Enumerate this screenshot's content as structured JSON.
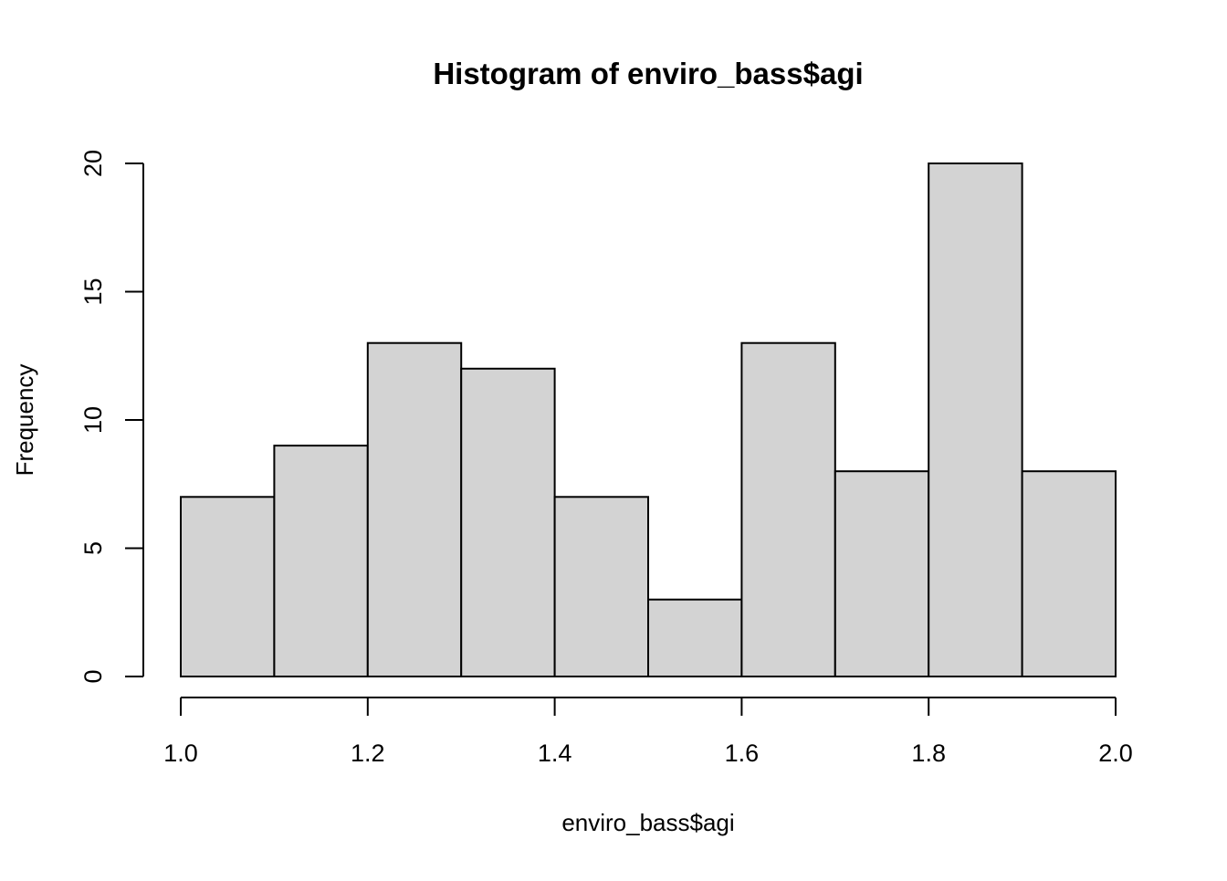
{
  "chart_data": {
    "type": "bar",
    "title": "Histogram of enviro_bass$agi",
    "xlabel": "enviro_bass$agi",
    "ylabel": "Frequency",
    "bins": [
      {
        "start": 1.0,
        "end": 1.1,
        "count": 7
      },
      {
        "start": 1.1,
        "end": 1.2,
        "count": 9
      },
      {
        "start": 1.2,
        "end": 1.3,
        "count": 13
      },
      {
        "start": 1.3,
        "end": 1.4,
        "count": 12
      },
      {
        "start": 1.4,
        "end": 1.5,
        "count": 7
      },
      {
        "start": 1.5,
        "end": 1.6,
        "count": 3
      },
      {
        "start": 1.6,
        "end": 1.7,
        "count": 13
      },
      {
        "start": 1.7,
        "end": 1.8,
        "count": 8
      },
      {
        "start": 1.8,
        "end": 1.9,
        "count": 20
      },
      {
        "start": 1.9,
        "end": 2.0,
        "count": 8
      }
    ],
    "xlim": [
      1.0,
      2.0
    ],
    "ylim": [
      0,
      20
    ],
    "x_ticks": [
      "1.0",
      "1.2",
      "1.4",
      "1.6",
      "1.8",
      "2.0"
    ],
    "y_ticks": [
      "0",
      "5",
      "10",
      "15",
      "20"
    ],
    "bar_color": "#d3d3d3",
    "border_color": "#000000",
    "grid": false,
    "legend": "none"
  }
}
